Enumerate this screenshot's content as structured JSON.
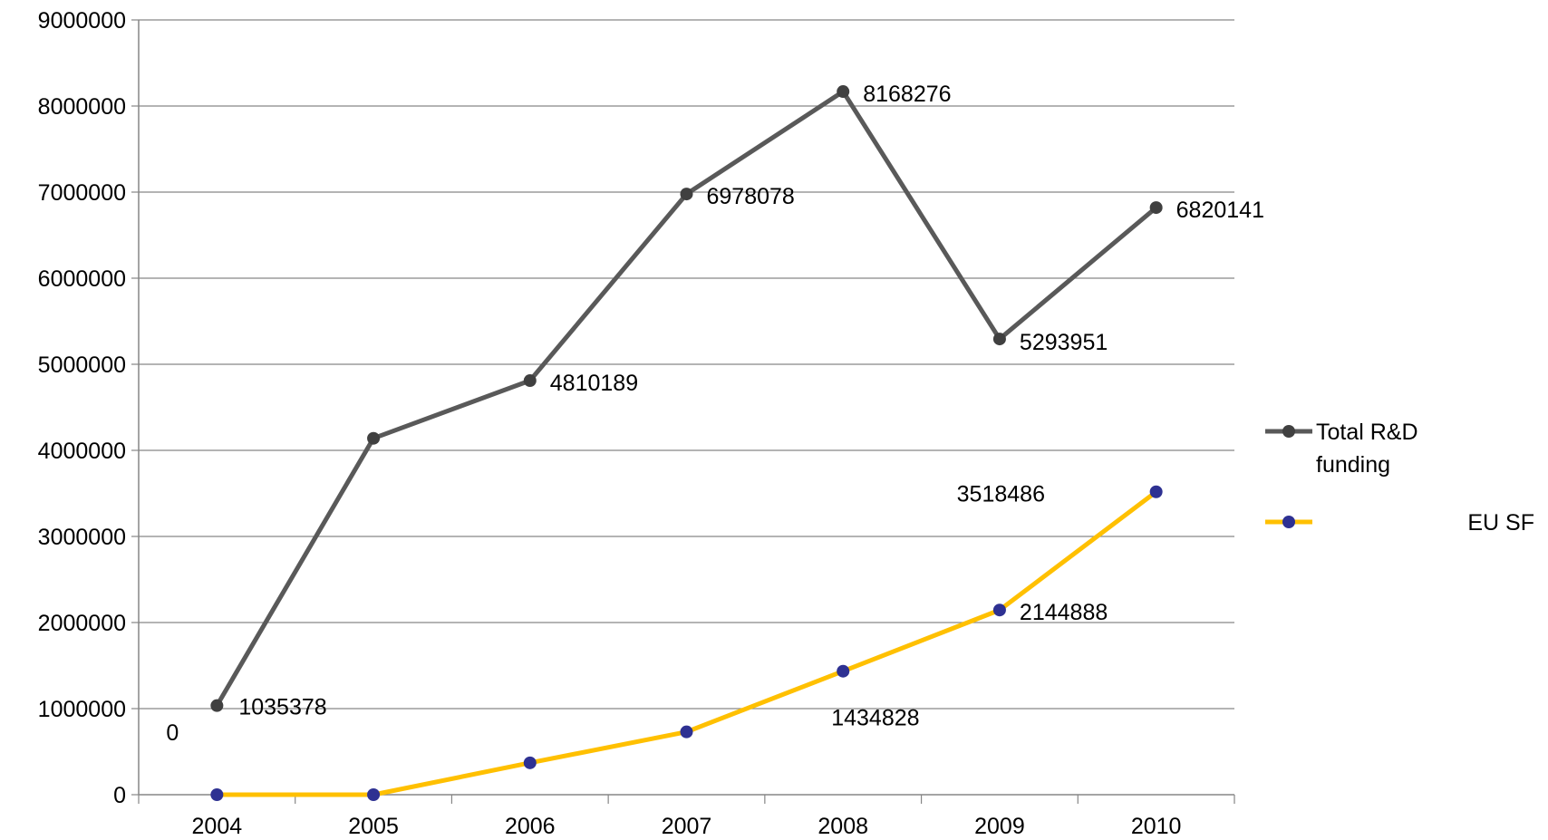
{
  "chart_data": {
    "type": "line",
    "categories": [
      "2004",
      "2005",
      "2006",
      "2007",
      "2008",
      "2009",
      "2010"
    ],
    "ylim": [
      0,
      9000000
    ],
    "yticks": [
      "0",
      "1000000",
      "2000000",
      "3000000",
      "4000000",
      "5000000",
      "6000000",
      "7000000",
      "8000000",
      "9000000"
    ],
    "grid": true,
    "legend_position": "right",
    "series": [
      {
        "name_lines": [
          "Total R&D",
          "funding"
        ],
        "color": "#595959",
        "marker_color": "#404040",
        "values": [
          1035378,
          4140000,
          4810189,
          6978078,
          8168276,
          5293951,
          6820141
        ],
        "labels": [
          "1035378",
          "",
          "4810189",
          "6978078",
          "8168276",
          "5293951",
          "6820141"
        ]
      },
      {
        "name_lines": [
          "EU SF"
        ],
        "color": "#FFC000",
        "marker_color": "#2E3192",
        "values": [
          0,
          0,
          370000,
          730000,
          1434828,
          2144888,
          3518486
        ],
        "labels": [
          "0",
          "",
          "",
          "",
          "1434828",
          "2144888",
          "3518486"
        ]
      }
    ]
  }
}
